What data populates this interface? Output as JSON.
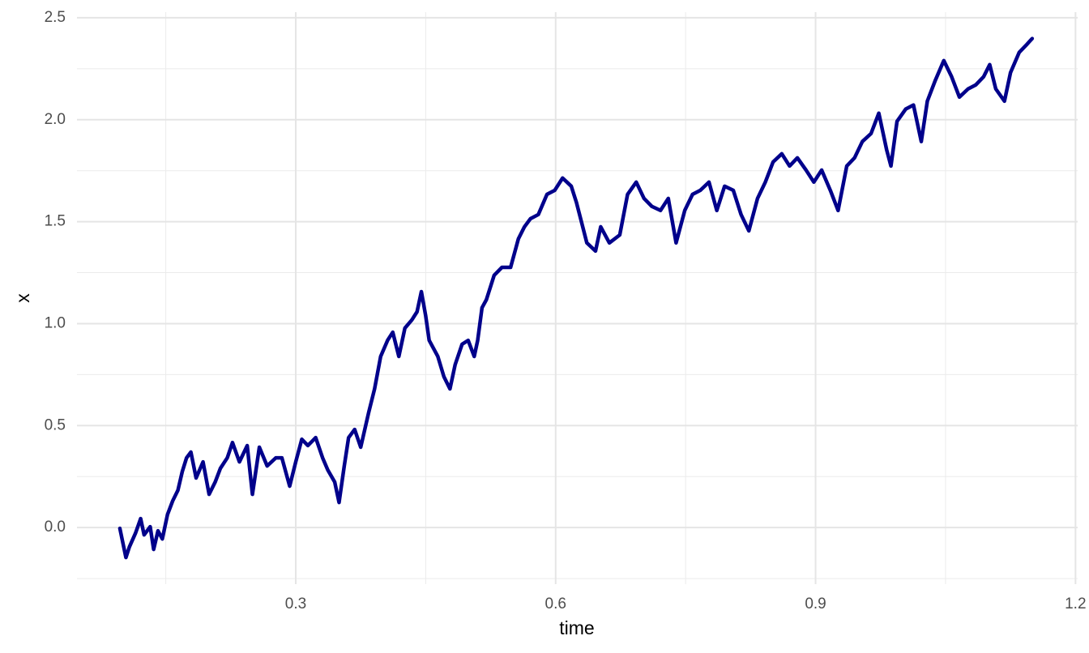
{
  "chart_data": {
    "type": "line",
    "x_label": "time",
    "y_label": "x",
    "color": "#00008b",
    "xlim": [
      0.0475,
      1.2025
    ],
    "ylim": [
      -0.2775,
      2.5275
    ],
    "xticks": [
      0.3,
      0.6,
      0.9,
      1.2
    ],
    "yticks": [
      {
        "value": 0,
        "label": "0.0"
      },
      0.5,
      {
        "value": 1,
        "label": "1.0"
      },
      1.5,
      {
        "value": 2,
        "label": "2.0"
      },
      2.5
    ],
    "x_minor_ticks": [
      0.15,
      0.45,
      0.75,
      1.05
    ],
    "y_minor_ticks": [
      -0.25,
      0.25,
      0.75,
      1.25,
      1.75,
      2.25
    ],
    "grid": true,
    "x": [
      0.097,
      0.104,
      0.108,
      0.115,
      0.121,
      0.125,
      0.132,
      0.136,
      0.141,
      0.146,
      0.152,
      0.158,
      0.164,
      0.169,
      0.174,
      0.179,
      0.185,
      0.193,
      0.2,
      0.207,
      0.213,
      0.221,
      0.227,
      0.235,
      0.244,
      0.25,
      0.258,
      0.267,
      0.277,
      0.284,
      0.293,
      0.3,
      0.307,
      0.314,
      0.323,
      0.331,
      0.337,
      0.345,
      0.35,
      0.356,
      0.361,
      0.368,
      0.375,
      0.384,
      0.391,
      0.398,
      0.406,
      0.412,
      0.419,
      0.426,
      0.434,
      0.44,
      0.445,
      0.45,
      0.454,
      0.464,
      0.471,
      0.478,
      0.484,
      0.492,
      0.499,
      0.506,
      0.51,
      0.515,
      0.52,
      0.529,
      0.538,
      0.548,
      0.557,
      0.564,
      0.571,
      0.58,
      0.59,
      0.599,
      0.608,
      0.618,
      0.624,
      0.63,
      0.636,
      0.646,
      0.652,
      0.662,
      0.674,
      0.683,
      0.693,
      0.702,
      0.711,
      0.721,
      0.73,
      0.739,
      0.749,
      0.758,
      0.767,
      0.777,
      0.786,
      0.795,
      0.805,
      0.814,
      0.823,
      0.833,
      0.842,
      0.851,
      0.861,
      0.87,
      0.879,
      0.889,
      0.898,
      0.907,
      0.917,
      0.926,
      0.936,
      0.945,
      0.954,
      0.964,
      0.973,
      0.982,
      0.987,
      0.994,
      1.004,
      1.013,
      1.022,
      1.029,
      1.038,
      1.048,
      1.057,
      1.066,
      1.076,
      1.085,
      1.094,
      1.101,
      1.108,
      1.118,
      1.125,
      1.135,
      1.144,
      1.15
    ],
    "values": [
      -0.004,
      -0.147,
      -0.095,
      -0.028,
      0.044,
      -0.036,
      0.004,
      -0.107,
      -0.016,
      -0.056,
      0.064,
      0.131,
      0.183,
      0.274,
      0.342,
      0.37,
      0.243,
      0.322,
      0.163,
      0.223,
      0.29,
      0.342,
      0.417,
      0.322,
      0.402,
      0.163,
      0.394,
      0.302,
      0.342,
      0.342,
      0.203,
      0.322,
      0.433,
      0.402,
      0.441,
      0.342,
      0.282,
      0.223,
      0.123,
      0.302,
      0.441,
      0.481,
      0.394,
      0.561,
      0.68,
      0.839,
      0.918,
      0.958,
      0.839,
      0.978,
      1.018,
      1.058,
      1.157,
      1.038,
      0.918,
      0.839,
      0.74,
      0.68,
      0.799,
      0.899,
      0.918,
      0.839,
      0.918,
      1.078,
      1.117,
      1.237,
      1.276,
      1.276,
      1.416,
      1.475,
      1.515,
      1.535,
      1.634,
      1.654,
      1.714,
      1.674,
      1.594,
      1.495,
      1.396,
      1.356,
      1.475,
      1.396,
      1.435,
      1.634,
      1.694,
      1.614,
      1.575,
      1.555,
      1.614,
      1.396,
      1.555,
      1.634,
      1.654,
      1.694,
      1.555,
      1.674,
      1.654,
      1.535,
      1.455,
      1.614,
      1.694,
      1.793,
      1.833,
      1.773,
      1.813,
      1.753,
      1.694,
      1.753,
      1.654,
      1.555,
      1.773,
      1.813,
      1.893,
      1.932,
      2.032,
      1.853,
      1.773,
      1.992,
      2.052,
      2.072,
      1.893,
      2.091,
      2.191,
      2.29,
      2.211,
      2.111,
      2.151,
      2.171,
      2.211,
      2.27,
      2.151,
      2.091,
      2.231,
      2.33,
      2.37,
      2.398
    ]
  }
}
